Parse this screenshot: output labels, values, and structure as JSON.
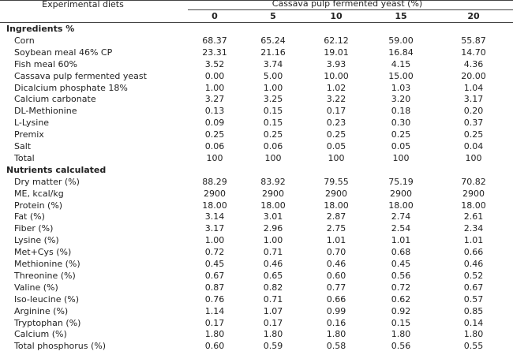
{
  "table": {
    "header": {
      "stub": "Experimental diets",
      "group": "Cassava pulp fermented yeast (%)",
      "columns": [
        "0",
        "5",
        "10",
        "15",
        "20"
      ]
    },
    "sections": [
      {
        "title": "Ingredients %",
        "rows": [
          {
            "label": "Corn",
            "values": [
              "68.37",
              "65.24",
              "62.12",
              "59.00",
              "55.87"
            ]
          },
          {
            "label": "Soybean meal 46% CP",
            "values": [
              "23.31",
              "21.16",
              "19.01",
              "16.84",
              "14.70"
            ]
          },
          {
            "label": "Fish meal 60%",
            "values": [
              "3.52",
              "3.74",
              "3.93",
              "4.15",
              "4.36"
            ]
          },
          {
            "label": "Cassava pulp fermented yeast",
            "values": [
              "0.00",
              "5.00",
              "10.00",
              "15.00",
              "20.00"
            ]
          },
          {
            "label": "Dicalcium phosphate 18%",
            "values": [
              "1.00",
              "1.00",
              "1.02",
              "1.03",
              "1.04"
            ]
          },
          {
            "label": "Calcium carbonate",
            "values": [
              "3.27",
              "3.25",
              "3.22",
              "3.20",
              "3.17"
            ]
          },
          {
            "label": "DL-Methionine",
            "values": [
              "0.13",
              "0.15",
              "0.17",
              "0.18",
              "0.20"
            ]
          },
          {
            "label": "L-Lysine",
            "values": [
              "0.09",
              "0.15",
              "0.23",
              "0.30",
              "0.37"
            ]
          },
          {
            "label": "Premix",
            "values": [
              "0.25",
              "0.25",
              "0.25",
              "0.25",
              "0.25"
            ]
          },
          {
            "label": "Salt",
            "values": [
              "0.06",
              "0.06",
              "0.05",
              "0.05",
              "0.04"
            ]
          },
          {
            "label": "Total",
            "values": [
              "100",
              "100",
              "100",
              "100",
              "100"
            ]
          }
        ]
      },
      {
        "title": "Nutrients calculated",
        "rows": [
          {
            "label": "Dry matter (%)",
            "values": [
              "88.29",
              "83.92",
              "79.55",
              "75.19",
              "70.82"
            ]
          },
          {
            "label": "ME, kcal/kg",
            "values": [
              "2900",
              "2900",
              "2900",
              "2900",
              "2900"
            ]
          },
          {
            "label": "Protein (%)",
            "values": [
              "18.00",
              "18.00",
              "18.00",
              "18.00",
              "18.00"
            ]
          },
          {
            "label": "Fat (%)",
            "values": [
              "3.14",
              "3.01",
              "2.87",
              "2.74",
              "2.61"
            ]
          },
          {
            "label": "Fiber (%)",
            "values": [
              "3.17",
              "2.96",
              "2.75",
              "2.54",
              "2.34"
            ]
          },
          {
            "label": "Lysine (%)",
            "values": [
              "1.00",
              "1.00",
              "1.01",
              "1.01",
              "1.01"
            ]
          },
          {
            "label": "Met+Cys (%)",
            "values": [
              "0.72",
              "0.71",
              "0.70",
              "0.68",
              "0.66"
            ]
          },
          {
            "label": "Methionine (%)",
            "values": [
              "0.45",
              "0.46",
              "0.46",
              "0.45",
              "0.46"
            ]
          },
          {
            "label": "Threonine (%)",
            "values": [
              "0.67",
              "0.65",
              "0.60",
              "0.56",
              "0.52"
            ]
          },
          {
            "label": "Valine (%)",
            "values": [
              "0.87",
              "0.82",
              "0.77",
              "0.72",
              "0.67"
            ]
          },
          {
            "label": "Iso-leucine (%)",
            "values": [
              "0.76",
              "0.71",
              "0.66",
              "0.62",
              "0.57"
            ]
          },
          {
            "label": "Arginine (%)",
            "values": [
              "1.14",
              "1.07",
              "0.99",
              "0.92",
              "0.85"
            ]
          },
          {
            "label": "Tryptophan (%)",
            "values": [
              "0.17",
              "0.17",
              "0.16",
              "0.15",
              "0.14"
            ]
          },
          {
            "label": "Calcium (%)",
            "values": [
              "1.80",
              "1.80",
              "1.80",
              "1.80",
              "1.80"
            ]
          },
          {
            "label": "Total phosphorus (%)",
            "values": [
              "0.60",
              "0.59",
              "0.58",
              "0.56",
              "0.55"
            ]
          }
        ]
      }
    ]
  }
}
